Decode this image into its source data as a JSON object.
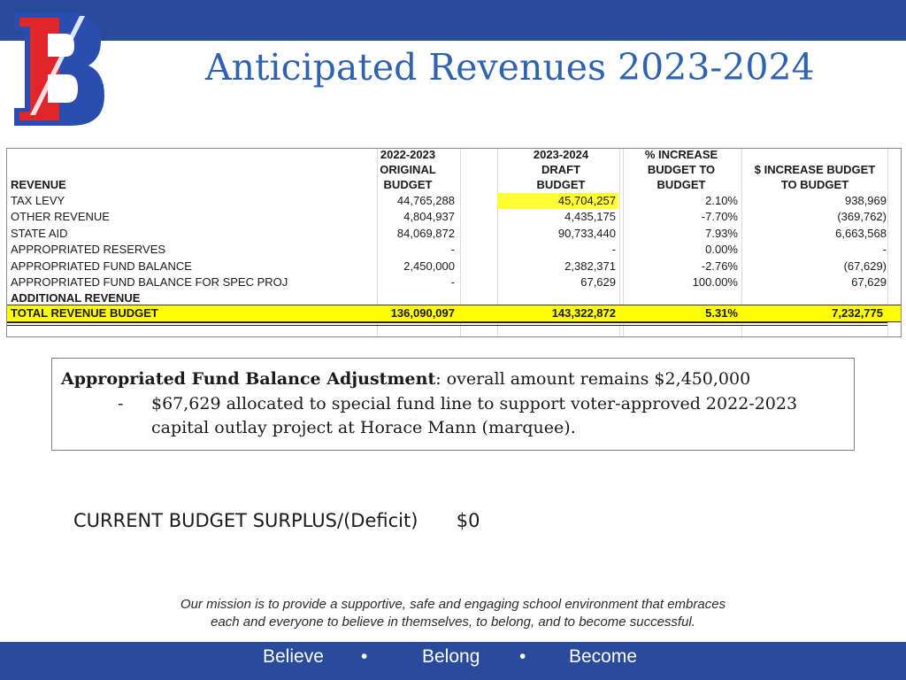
{
  "slide": {
    "title": "Anticipated Revenues 2023-2024"
  },
  "table": {
    "headers": {
      "revenue": "REVENUE",
      "col1": [
        "2022-2023",
        "ORIGINAL",
        "BUDGET"
      ],
      "col2": [
        "2023-2024",
        "DRAFT",
        "BUDGET"
      ],
      "col3": [
        "% INCREASE",
        "BUDGET TO",
        "BUDGET"
      ],
      "col4": [
        "$ INCREASE BUDGET",
        "TO BUDGET"
      ]
    },
    "rows": [
      {
        "label": "TAX LEVY",
        "original": "44,765,288",
        "draft": "45,704,257",
        "pct": "2.10%",
        "dollar": "938,969"
      },
      {
        "label": "OTHER REVENUE",
        "original": "4,804,937",
        "draft": "4,435,175",
        "pct": "-7.70%",
        "dollar": "(369,762)"
      },
      {
        "label": "STATE AID",
        "original": "84,069,872",
        "draft": "90,733,440",
        "pct": "7.93%",
        "dollar": "6,663,568"
      },
      {
        "label": "APPROPRIATED RESERVES",
        "original": "-",
        "draft": "-",
        "pct": "0.00%",
        "dollar": "-"
      },
      {
        "label": "APPROPRIATED FUND BALANCE",
        "original": "2,450,000",
        "draft": "2,382,371",
        "pct": "-2.76%",
        "dollar": "(67,629)"
      },
      {
        "label": "APPROPRIATED FUND BALANCE FOR SPEC PROJ",
        "original": "-",
        "draft": "67,629",
        "pct": "100.00%",
        "dollar": "67,629"
      },
      {
        "label": "ADDITIONAL REVENUE",
        "original": "",
        "draft": "",
        "pct": "",
        "dollar": ""
      }
    ],
    "total": {
      "label": "TOTAL REVENUE BUDGET",
      "original": "136,090,097",
      "draft": "143,322,872",
      "pct": "5.31%",
      "dollar": "7,232,775"
    }
  },
  "note": {
    "bold": "Appropriated Fund Balance Adjustment",
    "rest": ": overall amount remains $2,450,000",
    "bullet": "-",
    "line2": "$67,629 allocated to special fund line to support voter-approved 2022-2023",
    "line3": "capital outlay project at Horace Mann (marquee)."
  },
  "surplus": {
    "label": "CURRENT BUDGET SURPLUS/(Deficit)",
    "value": "$0"
  },
  "mission": {
    "line1": "Our mission is to provide a supportive, safe and engaging school environment that embraces",
    "line2": "each and everyone to believe in themselves, to belong, and to become successful."
  },
  "footer": {
    "words": [
      "Believe",
      "Belong",
      "Become"
    ],
    "separator": "•"
  },
  "colors": {
    "bar": "#2a4b9b",
    "title": "#2f63b0",
    "highlight": "#ffff00",
    "logo_red": "#e0262b",
    "logo_blue": "#2a4db0"
  }
}
